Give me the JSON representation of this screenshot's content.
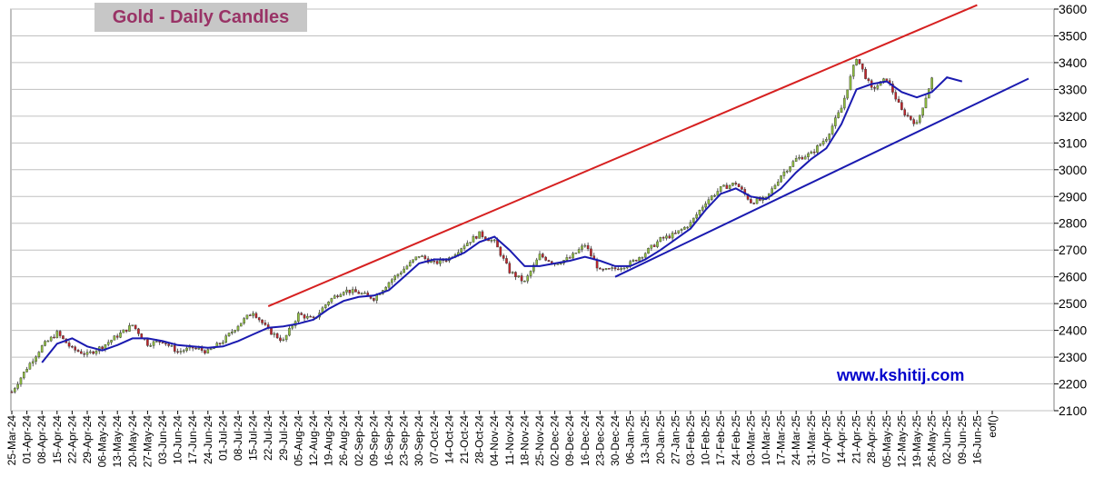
{
  "title": "Gold - Daily Candles",
  "watermark": "www.kshitij.com",
  "chart_data": {
    "type": "candlestick",
    "ylim": [
      2100,
      3600
    ],
    "y_ticks": [
      2100,
      2200,
      2300,
      2400,
      2500,
      2600,
      2700,
      2800,
      2900,
      3000,
      3100,
      3200,
      3300,
      3400,
      3500,
      3600
    ],
    "x_tick_labels": [
      "25-Mar-24",
      "01-Apr-24",
      "08-Apr-24",
      "15-Apr-24",
      "22-Apr-24",
      "29-Apr-24",
      "06-May-24",
      "13-May-24",
      "20-May-24",
      "27-May-24",
      "03-Jun-24",
      "10-Jun-24",
      "17-Jun-24",
      "24-Jun-24",
      "01-Jul-24",
      "08-Jul-24",
      "15-Jul-24",
      "22-Jul-24",
      "29-Jul-24",
      "05-Aug-24",
      "12-Aug-24",
      "19-Aug-24",
      "26-Aug-24",
      "02-Sep-24",
      "09-Sep-24",
      "16-Sep-24",
      "23-Sep-24",
      "30-Sep-24",
      "07-Oct-24",
      "14-Oct-24",
      "21-Oct-24",
      "28-Oct-24",
      "04-Nov-24",
      "11-Nov-24",
      "18-Nov-24",
      "25-Nov-24",
      "02-Dec-24",
      "09-Dec-24",
      "16-Dec-24",
      "23-Dec-24",
      "30-Dec-24",
      "06-Jan-25",
      "13-Jan-25",
      "20-Jan-25",
      "27-Jan-25",
      "03-Feb-25",
      "10-Feb-25",
      "17-Feb-25",
      "24-Feb-25",
      "03-Mar-25",
      "10-Mar-25",
      "17-Mar-25",
      "24-Mar-25",
      "31-Mar-25",
      "07-Apr-25",
      "14-Apr-25",
      "21-Apr-25",
      "28-Apr-25",
      "05-May-25",
      "12-May-25",
      "19-May-25",
      "26-May-25",
      "02-Jun-25",
      "09-Jun-25",
      "16-Jun-25",
      "eof()"
    ],
    "price_anchors": [
      {
        "date": "25-Mar-24",
        "close": 2170
      },
      {
        "date": "01-Apr-24",
        "close": 2260
      },
      {
        "date": "08-Apr-24",
        "close": 2340
      },
      {
        "date": "15-Apr-24",
        "close": 2390
      },
      {
        "date": "22-Apr-24",
        "close": 2330
      },
      {
        "date": "29-Apr-24",
        "close": 2310
      },
      {
        "date": "06-May-24",
        "close": 2340
      },
      {
        "date": "13-May-24",
        "close": 2380
      },
      {
        "date": "20-May-24",
        "close": 2420
      },
      {
        "date": "27-May-24",
        "close": 2350
      },
      {
        "date": "03-Jun-24",
        "close": 2360
      },
      {
        "date": "10-Jun-24",
        "close": 2320
      },
      {
        "date": "17-Jun-24",
        "close": 2335
      },
      {
        "date": "24-Jun-24",
        "close": 2320
      },
      {
        "date": "01-Jul-24",
        "close": 2360
      },
      {
        "date": "08-Jul-24",
        "close": 2420
      },
      {
        "date": "15-Jul-24",
        "close": 2470
      },
      {
        "date": "22-Jul-24",
        "close": 2400
      },
      {
        "date": "29-Jul-24",
        "close": 2360
      },
      {
        "date": "05-Aug-24",
        "close": 2460
      },
      {
        "date": "12-Aug-24",
        "close": 2440
      },
      {
        "date": "19-Aug-24",
        "close": 2510
      },
      {
        "date": "26-Aug-24",
        "close": 2550
      },
      {
        "date": "02-Sep-24",
        "close": 2540
      },
      {
        "date": "09-Sep-24",
        "close": 2520
      },
      {
        "date": "16-Sep-24",
        "close": 2580
      },
      {
        "date": "23-Sep-24",
        "close": 2630
      },
      {
        "date": "30-Sep-24",
        "close": 2680
      },
      {
        "date": "07-Oct-24",
        "close": 2650
      },
      {
        "date": "14-Oct-24",
        "close": 2670
      },
      {
        "date": "21-Oct-24",
        "close": 2720
      },
      {
        "date": "28-Oct-24",
        "close": 2760
      },
      {
        "date": "04-Nov-24",
        "close": 2730
      },
      {
        "date": "11-Nov-24",
        "close": 2620
      },
      {
        "date": "18-Nov-24",
        "close": 2580
      },
      {
        "date": "25-Nov-24",
        "close": 2680
      },
      {
        "date": "02-Dec-24",
        "close": 2650
      },
      {
        "date": "09-Dec-24",
        "close": 2670
      },
      {
        "date": "16-Dec-24",
        "close": 2720
      },
      {
        "date": "23-Dec-24",
        "close": 2620
      },
      {
        "date": "30-Dec-24",
        "close": 2630
      },
      {
        "date": "06-Jan-25",
        "close": 2650
      },
      {
        "date": "13-Jan-25",
        "close": 2690
      },
      {
        "date": "20-Jan-25",
        "close": 2740
      },
      {
        "date": "27-Jan-25",
        "close": 2760
      },
      {
        "date": "03-Feb-25",
        "close": 2800
      },
      {
        "date": "10-Feb-25",
        "close": 2880
      },
      {
        "date": "17-Feb-25",
        "close": 2930
      },
      {
        "date": "24-Feb-25",
        "close": 2950
      },
      {
        "date": "03-Mar-25",
        "close": 2880
      },
      {
        "date": "10-Mar-25",
        "close": 2890
      },
      {
        "date": "17-Mar-25",
        "close": 2980
      },
      {
        "date": "24-Mar-25",
        "close": 3040
      },
      {
        "date": "31-Mar-25",
        "close": 3060
      },
      {
        "date": "07-Apr-25",
        "close": 3120
      },
      {
        "date": "14-Apr-25",
        "close": 3230
      },
      {
        "date": "21-Apr-25",
        "close": 3420
      },
      {
        "date": "28-Apr-25",
        "close": 3300
      },
      {
        "date": "05-May-25",
        "close": 3340
      },
      {
        "date": "12-May-25",
        "close": 3220
      },
      {
        "date": "19-May-25",
        "close": 3170
      },
      {
        "date": "26-May-25",
        "close": 3340
      }
    ],
    "moving_average_anchors": [
      {
        "date": "08-Apr-24",
        "value": 2280
      },
      {
        "date": "15-Apr-24",
        "value": 2350
      },
      {
        "date": "22-Apr-24",
        "value": 2370
      },
      {
        "date": "29-Apr-24",
        "value": 2340
      },
      {
        "date": "06-May-24",
        "value": 2325
      },
      {
        "date": "13-May-24",
        "value": 2345
      },
      {
        "date": "20-May-24",
        "value": 2370
      },
      {
        "date": "27-May-24",
        "value": 2370
      },
      {
        "date": "03-Jun-24",
        "value": 2360
      },
      {
        "date": "10-Jun-24",
        "value": 2345
      },
      {
        "date": "17-Jun-24",
        "value": 2340
      },
      {
        "date": "24-Jun-24",
        "value": 2335
      },
      {
        "date": "01-Jul-24",
        "value": 2340
      },
      {
        "date": "08-Jul-24",
        "value": 2360
      },
      {
        "date": "15-Jul-24",
        "value": 2385
      },
      {
        "date": "22-Jul-24",
        "value": 2410
      },
      {
        "date": "29-Jul-24",
        "value": 2415
      },
      {
        "date": "05-Aug-24",
        "value": 2425
      },
      {
        "date": "12-Aug-24",
        "value": 2440
      },
      {
        "date": "19-Aug-24",
        "value": 2480
      },
      {
        "date": "26-Aug-24",
        "value": 2510
      },
      {
        "date": "02-Sep-24",
        "value": 2525
      },
      {
        "date": "09-Sep-24",
        "value": 2530
      },
      {
        "date": "16-Sep-24",
        "value": 2550
      },
      {
        "date": "23-Sep-24",
        "value": 2600
      },
      {
        "date": "30-Sep-24",
        "value": 2650
      },
      {
        "date": "07-Oct-24",
        "value": 2665
      },
      {
        "date": "14-Oct-24",
        "value": 2665
      },
      {
        "date": "21-Oct-24",
        "value": 2690
      },
      {
        "date": "28-Oct-24",
        "value": 2730
      },
      {
        "date": "04-Nov-24",
        "value": 2750
      },
      {
        "date": "11-Nov-24",
        "value": 2700
      },
      {
        "date": "18-Nov-24",
        "value": 2640
      },
      {
        "date": "25-Nov-24",
        "value": 2640
      },
      {
        "date": "02-Dec-24",
        "value": 2650
      },
      {
        "date": "09-Dec-24",
        "value": 2660
      },
      {
        "date": "16-Dec-24",
        "value": 2675
      },
      {
        "date": "23-Dec-24",
        "value": 2660
      },
      {
        "date": "30-Dec-24",
        "value": 2640
      },
      {
        "date": "06-Jan-25",
        "value": 2640
      },
      {
        "date": "13-Jan-25",
        "value": 2665
      },
      {
        "date": "20-Jan-25",
        "value": 2700
      },
      {
        "date": "27-Jan-25",
        "value": 2740
      },
      {
        "date": "03-Feb-25",
        "value": 2780
      },
      {
        "date": "10-Feb-25",
        "value": 2850
      },
      {
        "date": "17-Feb-25",
        "value": 2910
      },
      {
        "date": "24-Feb-25",
        "value": 2930
      },
      {
        "date": "03-Mar-25",
        "value": 2900
      },
      {
        "date": "10-Mar-25",
        "value": 2890
      },
      {
        "date": "17-Mar-25",
        "value": 2930
      },
      {
        "date": "24-Mar-25",
        "value": 2990
      },
      {
        "date": "31-Mar-25",
        "value": 3040
      },
      {
        "date": "07-Apr-25",
        "value": 3080
      },
      {
        "date": "14-Apr-25",
        "value": 3170
      },
      {
        "date": "21-Apr-25",
        "value": 3300
      },
      {
        "date": "28-Apr-25",
        "value": 3320
      },
      {
        "date": "05-May-25",
        "value": 3330
      },
      {
        "date": "12-May-25",
        "value": 3290
      },
      {
        "date": "19-May-25",
        "value": 3270
      },
      {
        "date": "26-May-25",
        "value": 3290
      },
      {
        "date": "02-Jun-25",
        "value": 3345
      },
      {
        "date": "09-Jun-25",
        "value": 3330
      }
    ],
    "upper_trendline": {
      "start": {
        "date": "22-Jul-24",
        "value": 2490
      },
      "end": {
        "date": "16-Jun-25",
        "value": 3615
      }
    },
    "lower_trendline": {
      "start": {
        "date": "30-Dec-24",
        "value": 2600
      },
      "end": {
        "date": "eof()",
        "value": 3320
      }
    },
    "colors": {
      "up": "#8fbf3f",
      "down": "#c0252b",
      "ma": "#1a1ab0",
      "upper_trendline": "#d62020",
      "lower_trendline": "#1a1ab0",
      "grid": "#c0c0c0",
      "title_bg": "#c7c7c7",
      "title_text": "#993366",
      "watermark": "#0000cc"
    },
    "grid": "horizontal",
    "y_axis_position": "right"
  }
}
